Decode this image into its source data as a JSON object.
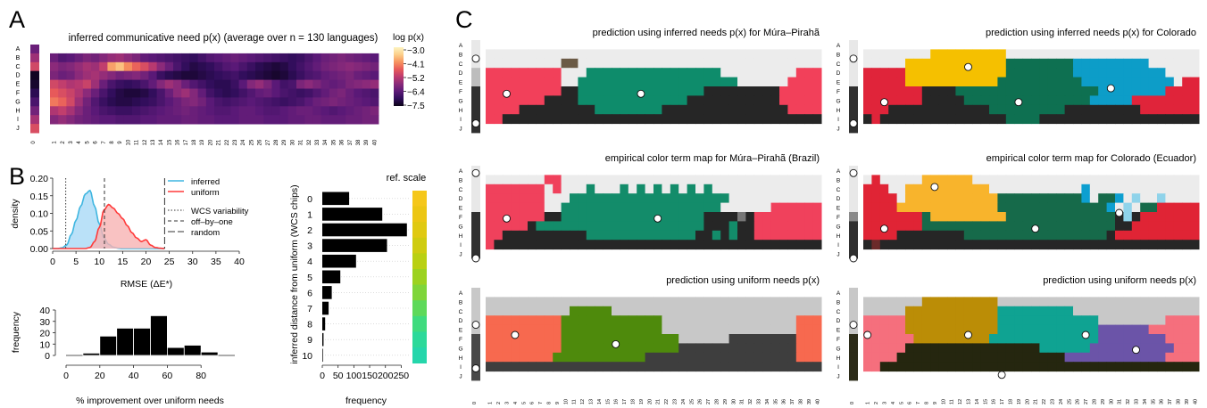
{
  "panel_labels": {
    "a": "A",
    "b": "B",
    "c": "C"
  },
  "row_letters": [
    "A",
    "B",
    "C",
    "D",
    "E",
    "F",
    "G",
    "H",
    "I",
    "J"
  ],
  "col_numbers": [
    "0",
    "1",
    "2",
    "3",
    "4",
    "5",
    "6",
    "7",
    "8",
    "9",
    "10",
    "11",
    "12",
    "13",
    "14",
    "15",
    "16",
    "17",
    "18",
    "19",
    "20",
    "21",
    "22",
    "23",
    "24",
    "25",
    "26",
    "27",
    "28",
    "29",
    "30",
    "31",
    "32",
    "33",
    "34",
    "35",
    "36",
    "37",
    "38",
    "39",
    "40"
  ],
  "panelA": {
    "title": "inferred communicative need p(x)  (average over n = 130 languages)",
    "colorbar_title": "log p(x)",
    "colorbar_ticks": [
      "−3.0",
      "−4.1",
      "−5.2",
      "−6.4",
      "−7.5"
    ],
    "colormap": [
      "#0b0316",
      "#2f0d5a",
      "#5c1a78",
      "#8a2a7a",
      "#bd3b6f",
      "#e85a5a",
      "#f7945f",
      "#fccf8a",
      "#fdf4c0"
    ]
  },
  "chart_data": [
    {
      "type": "heatmap",
      "title": "inferred communicative need p(x)  (average over n = 130 languages)",
      "colorbar_label": "log p(x)",
      "range": [
        -7.5,
        -3.0
      ],
      "rows": [
        "A",
        "B",
        "C",
        "D",
        "E",
        "F",
        "G",
        "H",
        "I",
        "J"
      ],
      "achromatic_column": [
        -6.2,
        -5.6,
        -5.0,
        -7.4,
        -7.3,
        -7.0,
        -6.6,
        -6.1,
        -5.5,
        -4.9
      ],
      "chromatic_rows": {
        "B": [
          -6.2,
          -6.5,
          -6.4,
          -6.2,
          -6.0,
          -6.1,
          -5.9,
          -5.7,
          -5.6,
          -5.8,
          -6.0,
          -6.3,
          -6.4,
          -6.5,
          -6.6,
          -6.7,
          -6.8,
          -6.9,
          -6.7,
          -6.5,
          -6.4,
          -6.3,
          -6.2,
          -6.3,
          -6.4,
          -6.5,
          -6.6,
          -6.7,
          -6.8,
          -6.9,
          -6.8,
          -6.6,
          -6.4,
          -6.2,
          -6.1,
          -6.0,
          -6.1,
          -6.2,
          -6.3,
          -6.4
        ],
        "C": [
          -5.8,
          -6.0,
          -5.9,
          -5.7,
          -5.5,
          -5.6,
          -5.2,
          -4.0,
          -3.7,
          -4.2,
          -4.6,
          -4.9,
          -5.3,
          -5.8,
          -6.2,
          -6.6,
          -6.9,
          -7.1,
          -7.0,
          -6.9,
          -6.7,
          -6.5,
          -6.4,
          -6.6,
          -6.8,
          -7.0,
          -7.1,
          -7.2,
          -7.1,
          -6.9,
          -6.7,
          -6.5,
          -6.3,
          -6.1,
          -6.0,
          -5.9,
          -5.8,
          -5.9,
          -6.0,
          -6.1
        ],
        "D": [
          -6.0,
          -6.2,
          -6.1,
          -5.8,
          -5.6,
          -5.5,
          -5.7,
          -5.9,
          -6.1,
          -6.0,
          -5.9,
          -6.1,
          -6.4,
          -6.8,
          -7.0,
          -7.1,
          -7.2,
          -7.2,
          -7.1,
          -7.0,
          -6.9,
          -6.8,
          -6.7,
          -6.9,
          -7.0,
          -7.1,
          -7.2,
          -7.3,
          -7.2,
          -7.0,
          -6.8,
          -6.6,
          -6.5,
          -6.3,
          -6.2,
          -6.1,
          -6.0,
          -6.2,
          -6.3,
          -6.4
        ],
        "E": [
          -5.0,
          -5.2,
          -5.4,
          -5.3,
          -5.1,
          -5.6,
          -6.2,
          -6.6,
          -6.8,
          -6.9,
          -6.8,
          -6.6,
          -6.3,
          -5.9,
          -5.6,
          -5.8,
          -6.2,
          -6.5,
          -6.7,
          -6.9,
          -7.0,
          -7.0,
          -6.8,
          -6.4,
          -5.9,
          -5.7,
          -6.0,
          -6.4,
          -6.7,
          -6.6,
          -6.0,
          -5.8,
          -6.0,
          -6.2,
          -6.3,
          -6.2,
          -6.0,
          -5.9,
          -5.8,
          -5.7
        ],
        "F": [
          -4.7,
          -4.9,
          -5.1,
          -5.4,
          -5.8,
          -6.2,
          -6.6,
          -6.9,
          -7.1,
          -7.2,
          -7.2,
          -7.1,
          -6.9,
          -6.6,
          -6.2,
          -5.8,
          -5.6,
          -5.9,
          -6.3,
          -6.7,
          -6.9,
          -7.0,
          -6.9,
          -6.7,
          -6.5,
          -6.3,
          -6.2,
          -6.4,
          -6.6,
          -6.7,
          -6.8,
          -6.7,
          -6.5,
          -6.3,
          -6.1,
          -6.0,
          -6.2,
          -6.4,
          -6.5,
          -6.6
        ],
        "G": [
          -4.4,
          -4.6,
          -5.0,
          -5.6,
          -6.1,
          -6.5,
          -6.8,
          -7.0,
          -7.1,
          -7.1,
          -7.0,
          -6.9,
          -6.8,
          -6.6,
          -6.4,
          -6.2,
          -6.0,
          -5.9,
          -6.1,
          -6.4,
          -6.6,
          -6.7,
          -6.6,
          -6.5,
          -6.4,
          -6.5,
          -6.6,
          -6.7,
          -6.8,
          -6.7,
          -6.6,
          -6.4,
          -6.2,
          -6.1,
          -6.0,
          -6.1,
          -6.2,
          -6.3,
          -6.4,
          -6.5
        ],
        "H": [
          -5.4,
          -5.2,
          -5.5,
          -5.9,
          -6.2,
          -6.4,
          -6.6,
          -6.7,
          -6.8,
          -6.8,
          -6.7,
          -6.6,
          -6.5,
          -6.4,
          -6.3,
          -6.2,
          -6.1,
          -6.2,
          -6.3,
          -6.4,
          -6.5,
          -6.5,
          -6.4,
          -6.3,
          -6.3,
          -6.4,
          -6.5,
          -6.5,
          -6.4,
          -6.3,
          -6.2,
          -6.2,
          -6.3,
          -6.4,
          -6.5,
          -6.4,
          -6.3,
          -6.2,
          -6.1,
          -6.0
        ],
        "I": [
          -5.9,
          -5.7,
          -5.9,
          -6.1,
          -6.2,
          -6.3,
          -6.4,
          -6.4,
          -6.5,
          -6.5,
          -6.5,
          -6.4,
          -6.4,
          -6.3,
          -6.3,
          -6.3,
          -6.2,
          -6.2,
          -6.3,
          -6.3,
          -6.4,
          -6.4,
          -6.4,
          -6.3,
          -6.3,
          -6.3,
          -6.4,
          -6.4,
          -6.4,
          -6.3,
          -6.3,
          -6.2,
          -6.2,
          -6.3,
          -6.3,
          -6.3,
          -6.2,
          -6.2,
          -6.1,
          -6.1
        ]
      }
    },
    {
      "type": "area",
      "xlabel": "RMSE (ΔE*)",
      "ylabel": "density",
      "xlim": [
        0,
        40
      ],
      "ylim": [
        0,
        0.2
      ],
      "xticks": [
        "0",
        "5",
        "10",
        "15",
        "20",
        "25",
        "30",
        "35",
        "40"
      ],
      "yticks": [
        "0.00",
        "0.05",
        "0.10",
        "0.15",
        "0.20"
      ],
      "x": [
        0,
        1,
        2,
        3,
        4,
        5,
        6,
        7,
        8,
        9,
        10,
        11,
        12,
        13,
        14,
        15,
        16,
        17,
        18,
        19,
        20,
        21,
        22,
        23,
        24
      ],
      "series": [
        {
          "name": "inferred",
          "color": "#3fb6e0",
          "fill": "#a9d9f6",
          "values": [
            0,
            0,
            0.002,
            0.01,
            0.04,
            0.08,
            0.12,
            0.155,
            0.165,
            0.12,
            0.07,
            0.03,
            0.012,
            0.004,
            0.001,
            0,
            0,
            0,
            0,
            0,
            0,
            0,
            0,
            0,
            0
          ]
        },
        {
          "name": "uniform",
          "color": "#ff3a3a",
          "fill": "#f8b3b3",
          "values": [
            0,
            0,
            0,
            0,
            0,
            0,
            0,
            0,
            0.003,
            0.02,
            0.06,
            0.11,
            0.125,
            0.115,
            0.1,
            0.085,
            0.065,
            0.045,
            0.03,
            0.02,
            0.025,
            0.01,
            0.003,
            0.001,
            0
          ]
        }
      ],
      "vlines": [
        {
          "label": "WCS variability",
          "x": 2.8,
          "style": "dotted"
        },
        {
          "label": "off–by–one",
          "x": 11.1,
          "style": "dashed"
        },
        {
          "label": "random",
          "x": 24.0,
          "style": "longdash"
        }
      ]
    },
    {
      "type": "bar",
      "xlabel": "% improvement over uniform needs",
      "ylabel": "frequency",
      "xlim": [
        0,
        100
      ],
      "ylim": [
        0,
        40
      ],
      "xticks": [
        "0",
        "20",
        "40",
        "60",
        "80"
      ],
      "yticks": [
        "0",
        "10",
        "20",
        "30",
        "40"
      ],
      "bins": [
        [
          10,
          20
        ],
        [
          20,
          30
        ],
        [
          30,
          40
        ],
        [
          40,
          50
        ],
        [
          50,
          60
        ],
        [
          60,
          70
        ],
        [
          70,
          80
        ],
        [
          80,
          90
        ]
      ],
      "values": [
        2,
        17,
        24,
        24,
        35,
        7,
        9,
        3
      ]
    },
    {
      "type": "bar",
      "orientation": "horizontal",
      "xlabel": "frequency",
      "ylabel": "inferred distance from uniform (WCS chips)",
      "xticks": [
        "0",
        "50",
        "100",
        "150",
        "200",
        "250"
      ],
      "xlim": [
        0,
        280
      ],
      "categories": [
        "0",
        "1",
        "2",
        "3",
        "4",
        "5",
        "6",
        "7",
        "8",
        "9",
        "10"
      ],
      "values": [
        85,
        190,
        268,
        205,
        107,
        57,
        30,
        20,
        9,
        4,
        2
      ],
      "ref_scale_label": "ref. scale",
      "ref_scale_colors": [
        "#f5c71a",
        "#ecc613",
        "#e0c911",
        "#cfcc10",
        "#b9d012",
        "#9cd220",
        "#7fd53a",
        "#5ed95a",
        "#3fdb7e",
        "#2cd99a",
        "#25d6ab"
      ]
    }
  ],
  "panelC": {
    "maps": [
      {
        "title": "prediction using inferred needs p(x) for Múra–Pirahã"
      },
      {
        "title": "prediction using inferred needs p(x) for Colorado"
      },
      {
        "title": "empirical color term map for Múra–Pirahã (Brazil)"
      },
      {
        "title": "empirical color term map for Colorado (Ecuador)"
      },
      {
        "title": "prediction using uniform needs p(x)"
      },
      {
        "title": "prediction using uniform needs p(x)"
      }
    ]
  }
}
